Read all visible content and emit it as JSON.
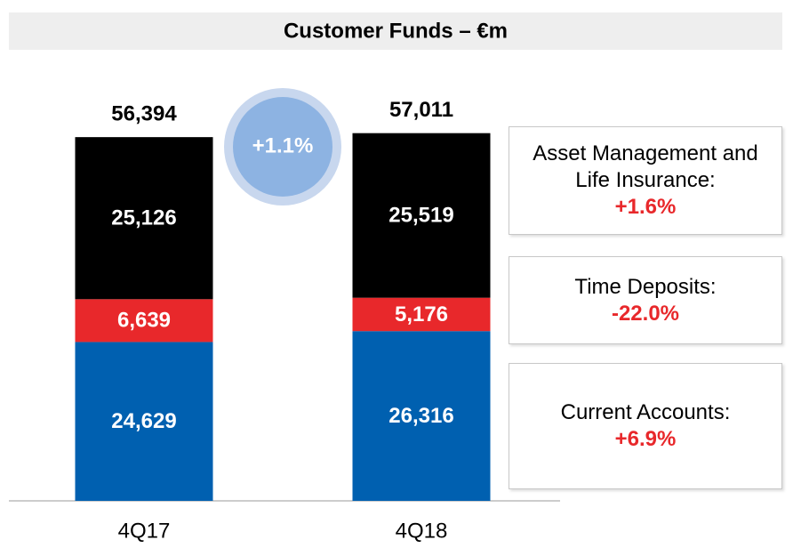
{
  "chart_data": {
    "type": "stacked_bar",
    "title": "Customer Funds – €m",
    "categories": [
      "4Q17",
      "4Q18"
    ],
    "series": [
      {
        "name": "Current Accounts",
        "color": "#0060b0",
        "values": [
          24629,
          26316
        ],
        "value_labels": [
          "24,629",
          "26,316"
        ]
      },
      {
        "name": "Time Deposits",
        "color": "#e8282b",
        "values": [
          6639,
          5176
        ],
        "value_labels": [
          "6,639",
          "5,176"
        ]
      },
      {
        "name": "Asset Management and Life Insurance",
        "color": "#000000",
        "values": [
          25126,
          25519
        ],
        "value_labels": [
          "25,126",
          "25,519"
        ]
      }
    ],
    "totals": [
      56394,
      57011
    ],
    "total_labels": [
      "56,394",
      "57,011"
    ],
    "ylim": [
      0,
      60000
    ],
    "change_bubble": "+1.1%",
    "annotations": [
      {
        "text": "Asset Management and Life Insurance:",
        "change": "+1.6%"
      },
      {
        "text": "Time Deposits:",
        "change": "-22.0%"
      },
      {
        "text": "Current Accounts:",
        "change": "+6.9%"
      }
    ]
  }
}
